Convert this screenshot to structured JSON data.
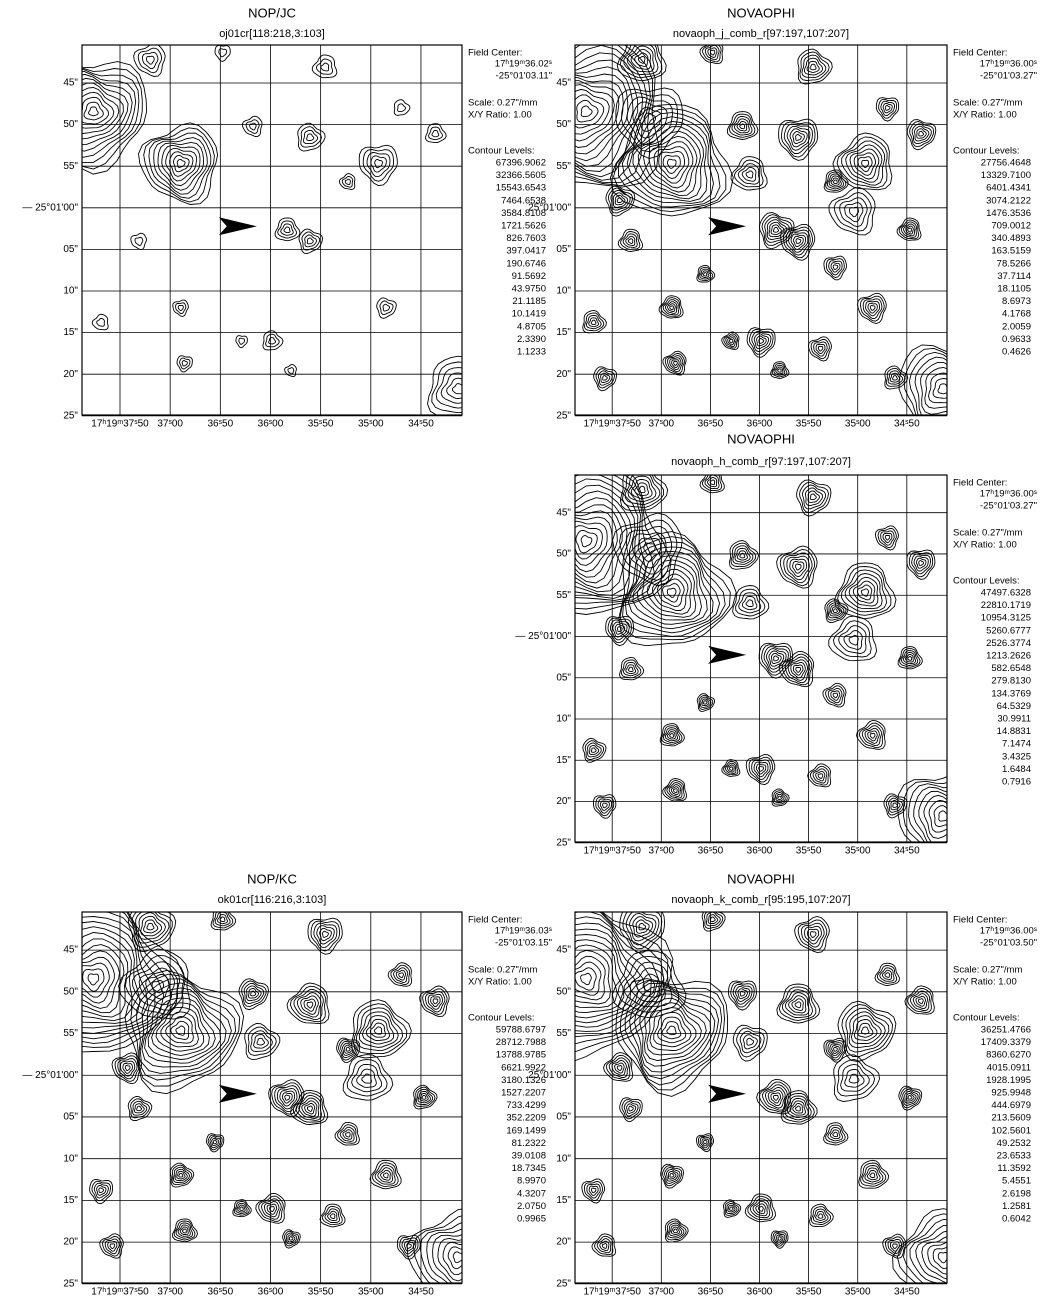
{
  "panels": [
    {
      "title": "NOP/JC",
      "subtitle": "oj01cr[118:218,3:103]",
      "field_center_label": "Field Center:",
      "ra": "17ʰ19ᵐ36.02ˢ",
      "dec": "-25°01'03.11\"",
      "scale": "Scale: 0.27\"/mm",
      "ratio": "X/Y Ratio: 1.00",
      "contour_label": "Contour Levels:",
      "levels": [
        "67396.9062",
        "32366.5605",
        "15543.6543",
        "7464.6538",
        "3584.8108",
        "1721.5626",
        "826.7603",
        "397.0417",
        "190.6746",
        "91.5692",
        "43.9750",
        "21.1185",
        "10.1419",
        "4.8705",
        "2.3390",
        "1.1233"
      ],
      "yticks": [
        "45\"",
        "50\"",
        "55\"",
        "— 25°01'00\"",
        "05\"",
        "10\"",
        "15\"",
        "20\"",
        "25\""
      ],
      "xticks": [
        "17ʰ19ᵐ37ˢ50",
        "37ˢ00",
        "36ˢ50",
        "36ˢ00",
        "35ˢ50",
        "35ˢ00",
        "34ˢ50"
      ]
    },
    {
      "title": "NOVAOPHI",
      "subtitle": "novaoph_j_comb_r[97:197,107:207]",
      "field_center_label": "Field Center:",
      "ra": "17ʰ19ᵐ36.00ˢ",
      "dec": "-25°01'03.27\"",
      "scale": "Scale: 0.27\"/mm",
      "ratio": "X/Y Ratio: 1.00",
      "contour_label": "Contour Levels:",
      "levels": [
        "27756.4648",
        "13329.7100",
        "6401.4341",
        "3074.2122",
        "1476.3536",
        "709.0012",
        "340.4893",
        "163.5159",
        "78.5266",
        "37.7114",
        "18.1105",
        "8.6973",
        "4.1768",
        "2.0059",
        "0.9633",
        "0.4626"
      ],
      "yticks": [
        "45\"",
        "50\"",
        "55\"",
        "25°01'00\"",
        "05\"",
        "10\"",
        "15\"",
        "20\"",
        "25\""
      ],
      "xticks": [
        "17ʰ19ᵐ37ˢ50",
        "37ˢ00",
        "36ˢ50",
        "36ˢ00",
        "35ˢ50",
        "35ˢ00",
        "34ˢ50"
      ]
    },
    {
      "title": "NOVAOPHI",
      "subtitle": "novaoph_h_comb_r[97:197,107:207]",
      "field_center_label": "Field Center:",
      "ra": "17ʰ19ᵐ36.00ˢ",
      "dec": "-25°01'03.27\"",
      "scale": "Scale: 0.27\"/mm",
      "ratio": "X/Y Ratio: 1.00",
      "contour_label": "Contour Levels:",
      "levels": [
        "47497.6328",
        "22810.1719",
        "10954.3125",
        "5260.6777",
        "2526.3774",
        "1213.2626",
        "582.6548",
        "279.8130",
        "134.3769",
        "64.5329",
        "30.9911",
        "14.8831",
        "7.1474",
        "3.4325",
        "1.6484",
        "0.7916"
      ],
      "yticks": [
        "45\"",
        "50\"",
        "55\"",
        "— 25°01'00\"",
        "05\"",
        "10\"",
        "15\"",
        "20\"",
        "25\""
      ],
      "xticks": [
        "17ʰ19ᵐ37ˢ50",
        "37ˢ00",
        "36ˢ50",
        "36ˢ00",
        "35ˢ50",
        "35ˢ00",
        "34ˢ50"
      ]
    },
    {
      "title": "NOP/KC",
      "subtitle": "ok01cr[116:216,3:103]",
      "field_center_label": "Field Center:",
      "ra": "17ʰ19ᵐ36.03ˢ",
      "dec": "-25°01'03.15\"",
      "scale": "Scale: 0.27\"/mm",
      "ratio": "X/Y Ratio: 1.00",
      "contour_label": "Contour Levels:",
      "levels": [
        "59788.6797",
        "28712.7988",
        "13788.9785",
        "6621.9922",
        "3180.1326",
        "1527.2207",
        "733.4299",
        "352.2209",
        "169.1499",
        "81.2322",
        "39.0108",
        "18.7345",
        "8.9970",
        "4.3207",
        "2.0750",
        "0.9965"
      ],
      "yticks": [
        "45\"",
        "50\"",
        "55\"",
        "— 25°01'00\"",
        "05\"",
        "10\"",
        "15\"",
        "20\"",
        "25\""
      ],
      "xticks": [
        "17ʰ19ᵐ37ˢ50",
        "37ˢ00",
        "36ˢ50",
        "36ˢ00",
        "35ˢ50",
        "35ˢ00",
        "34ˢ50"
      ]
    },
    {
      "title": "NOVAOPHI",
      "subtitle": "novaoph_k_comb_r[95:195,107:207]",
      "field_center_label": "Field Center:",
      "ra": "17ʰ19ᵐ36.00ˢ",
      "dec": "-25°01'03.50\"",
      "scale": "Scale: 0.27\"/mm",
      "ratio": "X/Y Ratio: 1.00",
      "contour_label": "Contour Levels:",
      "levels": [
        "36251.4766",
        "17409.3379",
        "8360.6270",
        "4015.0911",
        "1928.1995",
        "925.9948",
        "444.6979",
        "213.5609",
        "102.5601",
        "49.2532",
        "23.6533",
        "11.3592",
        "5.4551",
        "2.6198",
        "1.2581",
        "0.6042"
      ],
      "yticks": [
        "45\"",
        "50\"",
        "55\"",
        "25°01'00\"",
        "05\"",
        "10\"",
        "15\"",
        "20\"",
        "25\""
      ],
      "xticks": [
        "17ʰ19ᵐ37ˢ50",
        "37ˢ00",
        "36ˢ50",
        "36ˢ00",
        "35ˢ50",
        "35ˢ00",
        "34ˢ50"
      ]
    }
  ]
}
